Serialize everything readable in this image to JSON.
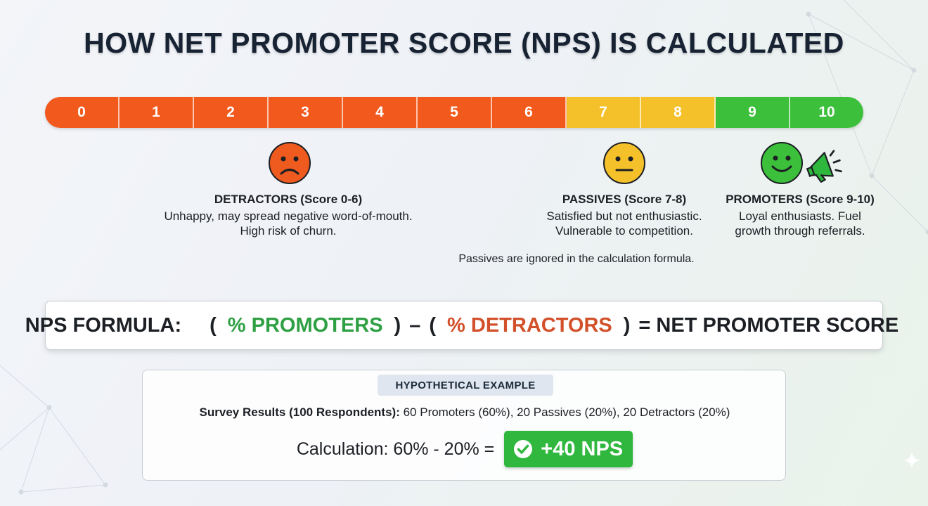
{
  "title": "HOW NET PROMOTER SCORE (NPS) IS CALCULATED",
  "colors": {
    "detractor": "#f2591c",
    "passive": "#f5c12a",
    "promoter": "#3cbf3a",
    "promoter_text": "#2ea043",
    "detractor_text": "#d2502a"
  },
  "scale": [
    {
      "label": "0",
      "group": "detractor"
    },
    {
      "label": "1",
      "group": "detractor"
    },
    {
      "label": "2",
      "group": "detractor"
    },
    {
      "label": "3",
      "group": "detractor"
    },
    {
      "label": "4",
      "group": "detractor"
    },
    {
      "label": "5",
      "group": "detractor"
    },
    {
      "label": "6",
      "group": "detractor"
    },
    {
      "label": "7",
      "group": "passive"
    },
    {
      "label": "8",
      "group": "passive"
    },
    {
      "label": "9",
      "group": "promoter"
    },
    {
      "label": "10",
      "group": "promoter"
    }
  ],
  "groups": {
    "detractors": {
      "icon": "sad-face-icon",
      "heading": "DETRACTORS (Score 0-6)",
      "line1": "Unhappy, may spread negative word-of-mouth.",
      "line2": "High risk of churn."
    },
    "passives": {
      "icon": "neutral-face-icon",
      "heading": "PASSIVES (Score 7-8)",
      "line1": "Satisfied but not enthusiastic.",
      "line2": "Vulnerable to competition."
    },
    "promoters": {
      "icon": "happy-face-icon",
      "extra_icon": "megaphone-icon",
      "heading": "PROMOTERS (Score 9-10)",
      "line1": "Loyal enthusiasts. Fuel",
      "line2": "growth through referrals."
    }
  },
  "note": "Passives are ignored in the calculation formula.",
  "formula": {
    "label": "NPS FORMULA:",
    "open1": "(",
    "promoters": "% PROMOTERS",
    "close1": ")",
    "minus": "–",
    "open2": "(",
    "detractors": "% DETRACTORS",
    "close2": ")",
    "equals": "= NET PROMOTER SCORE"
  },
  "example": {
    "tag": "HYPOTHETICAL EXAMPLE",
    "results_label": "Survey Results (100 Respondents):",
    "results_value": "60 Promoters (60%), 20 Passives (20%), 20 Detractors (20%)",
    "calc_text": "Calculation: 60% - 20% =",
    "result": "+40 NPS",
    "result_icon": "check-circle-icon"
  },
  "corner_icon": "sparkle-icon"
}
